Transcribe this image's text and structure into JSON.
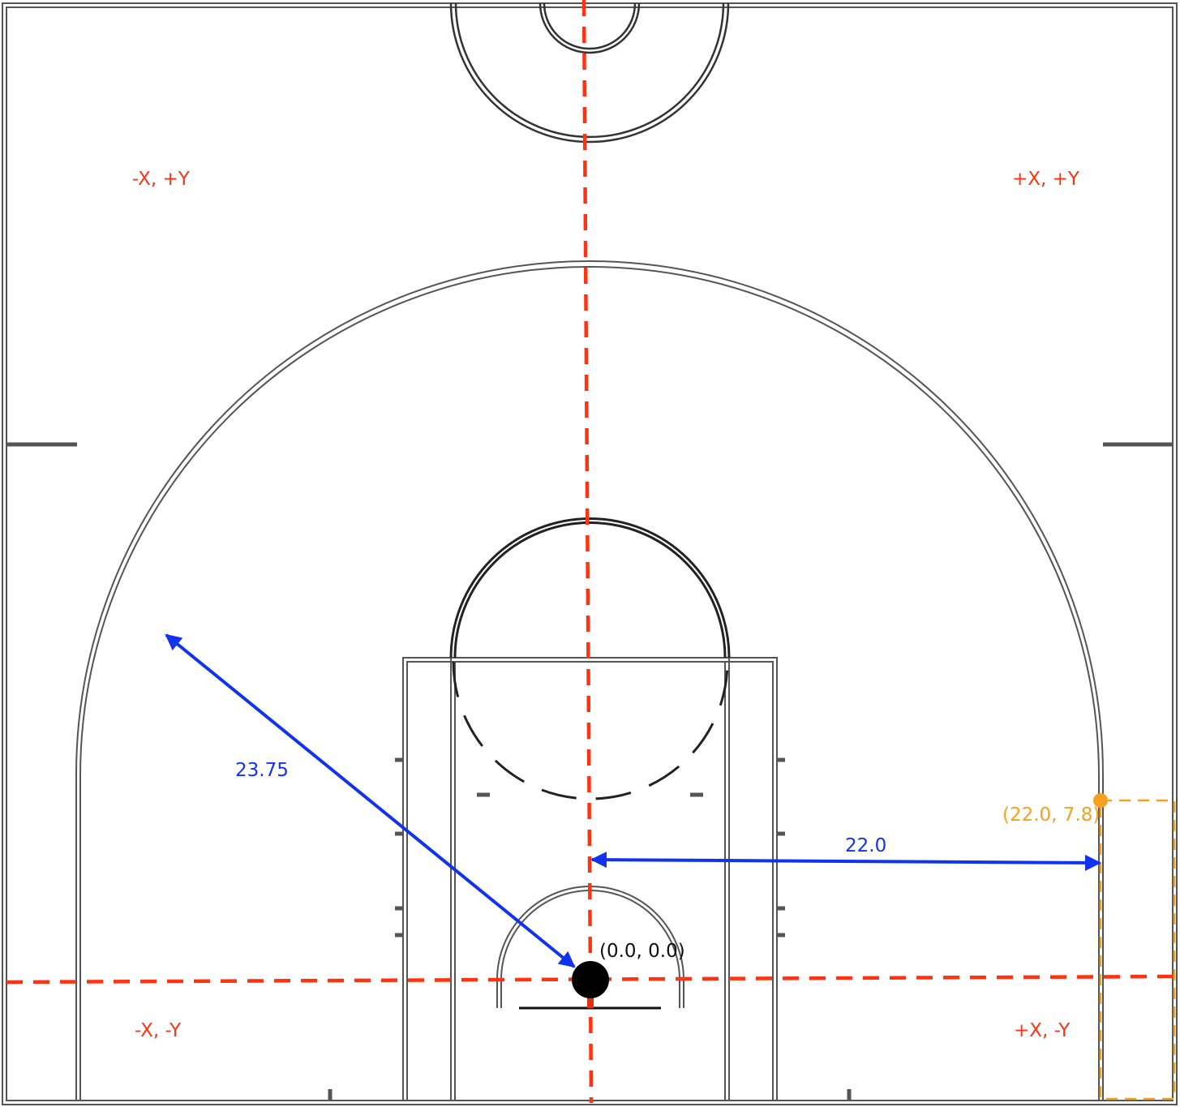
{
  "quadrants": {
    "top_left": "-X, +Y",
    "top_right": "+X, +Y",
    "bottom_left": "-X, -Y",
    "bottom_right": "+X, -Y"
  },
  "dimensions": {
    "three_point_radius": "23.75",
    "corner_three_distance": "22.0"
  },
  "points": {
    "origin": "(0.0, 0.0)",
    "corner_three_break": "(22.0, 7.8)"
  },
  "colors": {
    "court_line": "#333333",
    "axis": "#ff3311",
    "dimension": "#1133ee",
    "highlight": "#f5a020",
    "hoop": "#000000"
  }
}
